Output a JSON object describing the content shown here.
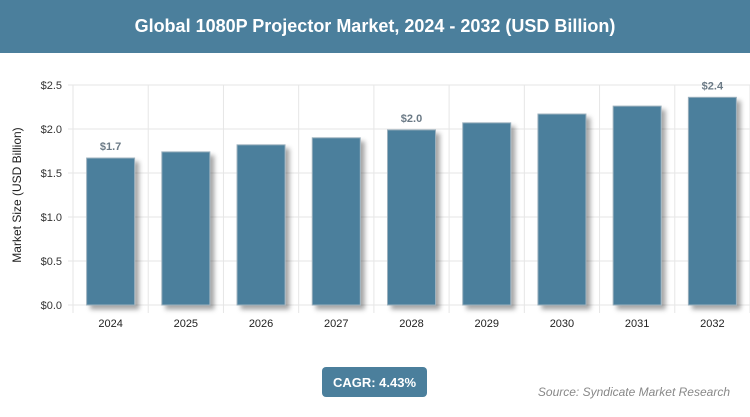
{
  "title": "Global 1080P Projector Market, 2024 - 2032 (USD Billion)",
  "cagr_label": "CAGR: 4.43%",
  "source": "Source: Syndicate Market Research",
  "colors": {
    "bar": "#4b7f9c",
    "header": "#4b7f9c"
  },
  "chart_data": {
    "type": "bar",
    "title": "Global 1080P Projector Market, 2024 - 2032 (USD Billion)",
    "xlabel": "",
    "ylabel": "Market Size (USD Billion)",
    "categories": [
      "2024",
      "2025",
      "2026",
      "2027",
      "2028",
      "2029",
      "2030",
      "2031",
      "2032"
    ],
    "values": [
      1.67,
      1.74,
      1.82,
      1.9,
      1.99,
      2.07,
      2.17,
      2.26,
      2.36
    ],
    "data_labels": {
      "0": "$1.7",
      "4": "$2.0",
      "8": "$2.4"
    },
    "ylim": [
      0,
      2.5
    ],
    "yticks": [
      "$0.0",
      "$0.5",
      "$1.0",
      "$1.5",
      "$2.0",
      "$2.5"
    ],
    "grid": true
  }
}
